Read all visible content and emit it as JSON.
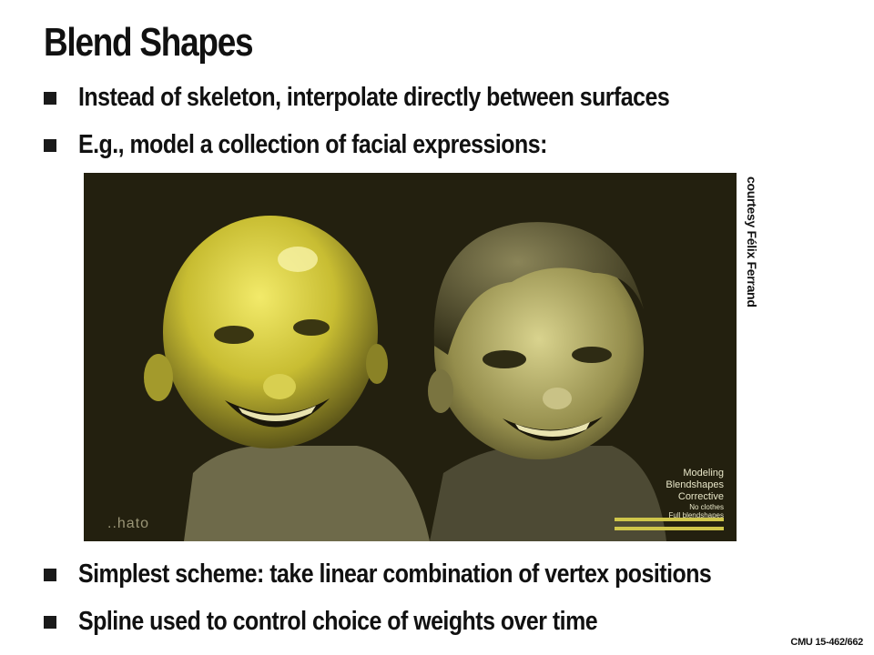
{
  "slide": {
    "title": "Blend Shapes",
    "bullets": [
      "Instead of skeleton, interpolate directly between surfaces",
      "E.g., model a collection of facial expressions:",
      "Simplest scheme: take linear combination of vertex positions",
      "Spline used to control choice of weights over time"
    ],
    "credit": "courtesy Félix Ferrand",
    "footer": "CMU 15-462/662"
  },
  "figure": {
    "overlay": {
      "line1": "Modeling",
      "line2": "Blendshapes",
      "line3": "Corrective",
      "line4": "No clothes",
      "line5": "Full blendshapes"
    },
    "logo": "..hato"
  }
}
